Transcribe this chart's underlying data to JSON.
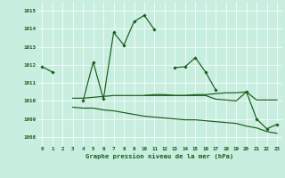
{
  "title": "Graphe pression niveau de la mer (hPa)",
  "background_color": "#c8eee0",
  "grid_color": "#ffffff",
  "line_color": "#1a5c1a",
  "ylim": [
    1007.5,
    1015.5
  ],
  "yticks": [
    1008,
    1009,
    1010,
    1011,
    1012,
    1013,
    1014,
    1015
  ],
  "line1_y": [
    1011.9,
    1011.6,
    null,
    null,
    1010.0,
    1012.15,
    1010.1,
    1013.8,
    1013.1,
    1014.4,
    1014.75,
    1013.95,
    null,
    1011.85,
    1011.9,
    1012.4,
    1011.6,
    1010.6,
    null,
    null,
    1010.5,
    1009.0,
    1008.45,
    1008.7
  ],
  "line2_y": [
    null,
    null,
    null,
    1010.15,
    1010.15,
    1010.2,
    1010.25,
    1010.3,
    1010.3,
    1010.3,
    1010.3,
    1010.3,
    1010.3,
    1010.3,
    1010.3,
    1010.3,
    1010.3,
    1010.1,
    1010.05,
    1010.0,
    1010.5,
    1010.05,
    1010.05,
    1010.05
  ],
  "line3_y": [
    null,
    null,
    null,
    1009.65,
    1009.6,
    1009.6,
    1009.5,
    1009.45,
    1009.35,
    1009.25,
    1009.15,
    1009.1,
    1009.05,
    1009.0,
    1008.95,
    1008.95,
    1008.9,
    1008.85,
    1008.8,
    1008.75,
    1008.6,
    1008.5,
    1008.3,
    1008.2
  ],
  "line4_y": [
    null,
    null,
    null,
    null,
    null,
    null,
    null,
    null,
    null,
    null,
    1010.3,
    1010.35,
    1010.35,
    1010.3,
    1010.3,
    1010.35,
    1010.35,
    1010.4,
    1010.45,
    1010.45,
    1010.5,
    null,
    null,
    null
  ],
  "marker_line1": [
    1011.9,
    1011.6,
    null,
    null,
    1010.0,
    1012.15,
    1010.1,
    1013.8,
    1013.1,
    1014.4,
    1014.75,
    1013.95,
    null,
    1011.85,
    1011.9,
    1012.4,
    1011.6,
    1010.6,
    null,
    null,
    1010.5,
    1009.0,
    1008.45,
    1008.7
  ]
}
